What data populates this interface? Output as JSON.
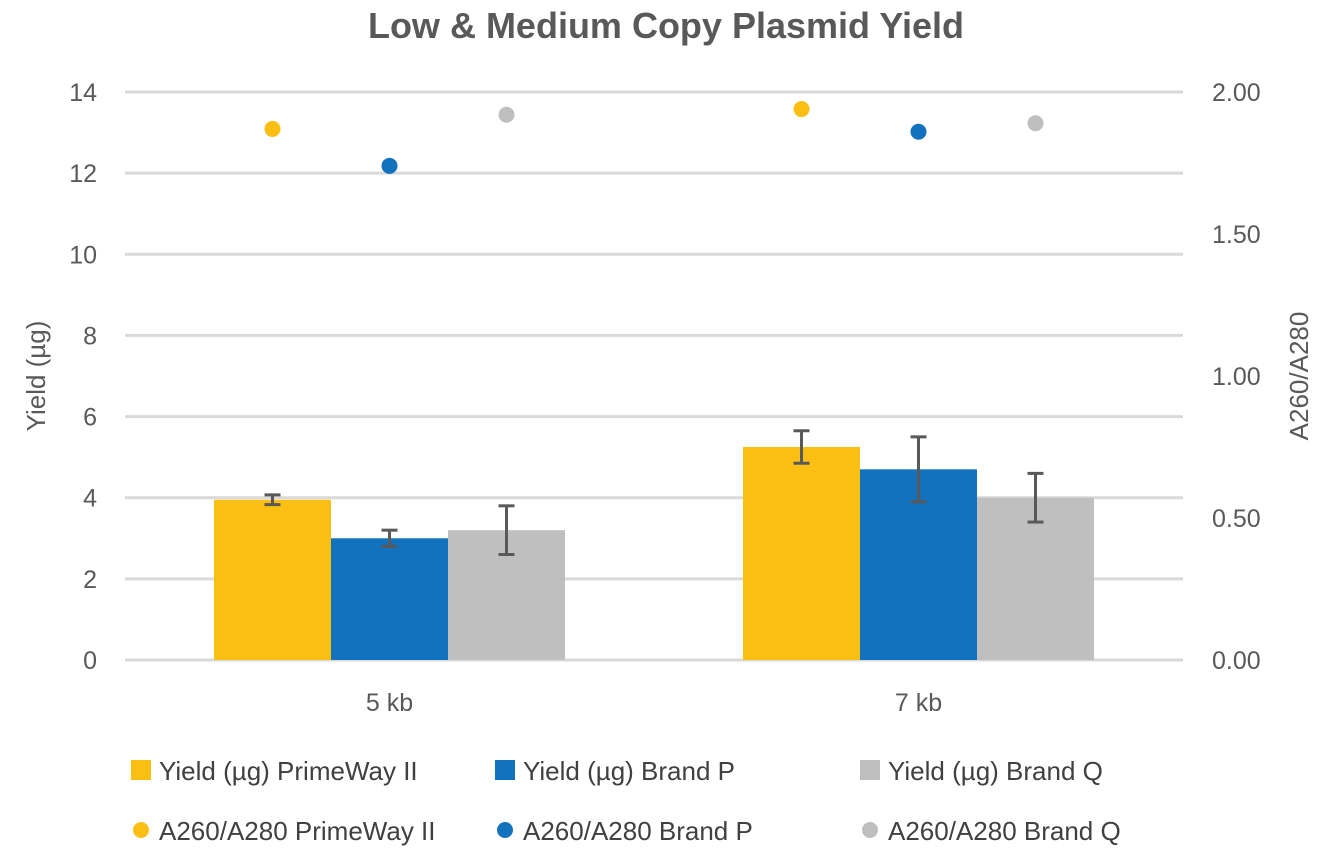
{
  "chart_data": {
    "type": "bar",
    "title": "Low & Medium Copy Plasmid Yield",
    "categories": [
      "5 kb",
      "7 kb"
    ],
    "ylabel": "Yield (µg)",
    "y2label": "A260/A280",
    "ylim": [
      0,
      14
    ],
    "yticks": [
      "0",
      "2",
      "4",
      "6",
      "8",
      "10",
      "12",
      "14"
    ],
    "y2lim": [
      0,
      2
    ],
    "y2ticks": [
      "0.00",
      "0.50",
      "1.00",
      "1.50",
      "2.00"
    ],
    "grid": true,
    "legend_position": "bottom",
    "bar_series": [
      {
        "name": "Yield (µg) PrimeWay II",
        "values": [
          3.95,
          5.25
        ],
        "error": [
          0.12,
          0.4
        ],
        "color": "#FBBF13"
      },
      {
        "name": "Yield (µg) Brand P",
        "values": [
          3.0,
          4.7
        ],
        "error": [
          0.2,
          0.8
        ],
        "color": "#1272BD"
      },
      {
        "name": "Yield (µg) Brand Q",
        "values": [
          3.2,
          4.0
        ],
        "error": [
          0.6,
          0.6
        ],
        "color": "#BFBFBF"
      }
    ],
    "scatter_series": [
      {
        "name": "A260/A280 PrimeWay II",
        "values": [
          1.87,
          1.94
        ],
        "color": "#FBBF13"
      },
      {
        "name": "A260/A280 Brand P",
        "values": [
          1.74,
          1.86
        ],
        "color": "#1272BD"
      },
      {
        "name": "A260/A280 Brand Q",
        "values": [
          1.92,
          1.89
        ],
        "color": "#BFBFBF"
      }
    ]
  }
}
